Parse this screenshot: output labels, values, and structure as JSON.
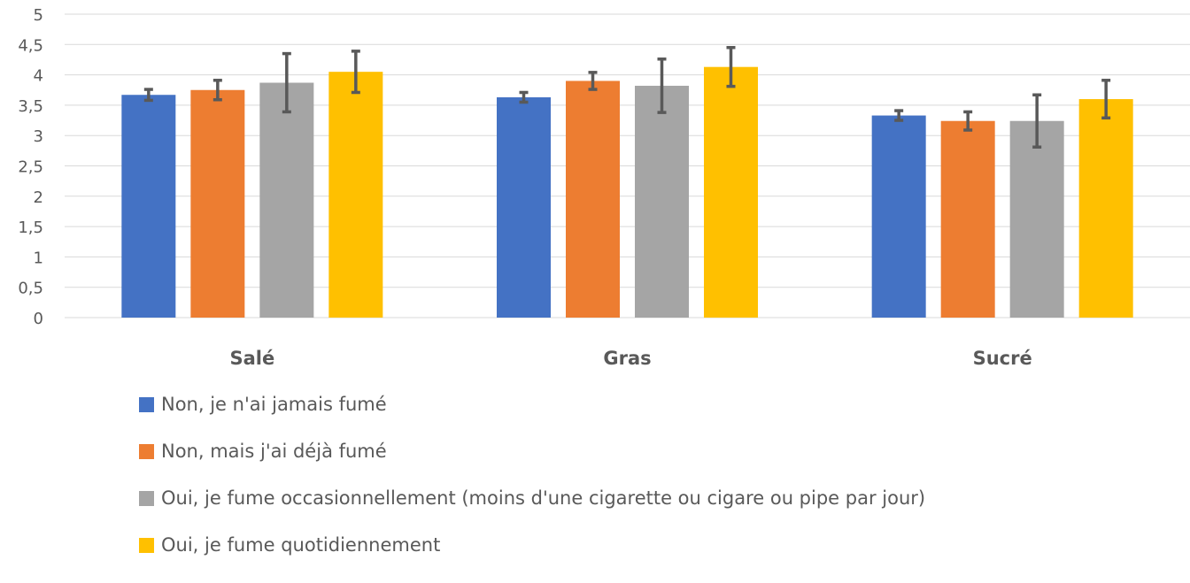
{
  "chart_data": {
    "type": "bar",
    "categories": [
      "Salé",
      "Gras",
      "Sucré"
    ],
    "ylim": [
      0,
      5
    ],
    "yticks": [
      "0",
      "0,5",
      "1",
      "1,5",
      "2",
      "2,5",
      "3",
      "3,5",
      "4",
      "4,5",
      "5"
    ],
    "grid": true,
    "legend_position": "bottom",
    "series": [
      {
        "name": "Non, je n'ai jamais fumé",
        "color": "#4472C4",
        "values": [
          3.67,
          3.63,
          3.33
        ],
        "errors": [
          0.09,
          0.08,
          0.08
        ]
      },
      {
        "name": "Non, mais j'ai déjà fumé",
        "color": "#ED7D31",
        "values": [
          3.75,
          3.9,
          3.24
        ],
        "errors": [
          0.16,
          0.14,
          0.15
        ]
      },
      {
        "name": "Oui, je fume occasionnellement (moins d'une cigarette ou cigare ou pipe par jour)",
        "color": "#A5A5A5",
        "values": [
          3.87,
          3.82,
          3.24
        ],
        "errors": [
          0.48,
          0.44,
          0.43
        ]
      },
      {
        "name": "Oui, je fume quotidiennement",
        "color": "#FFC000",
        "values": [
          4.05,
          4.13,
          3.6
        ],
        "errors": [
          0.34,
          0.32,
          0.31
        ]
      }
    ]
  }
}
